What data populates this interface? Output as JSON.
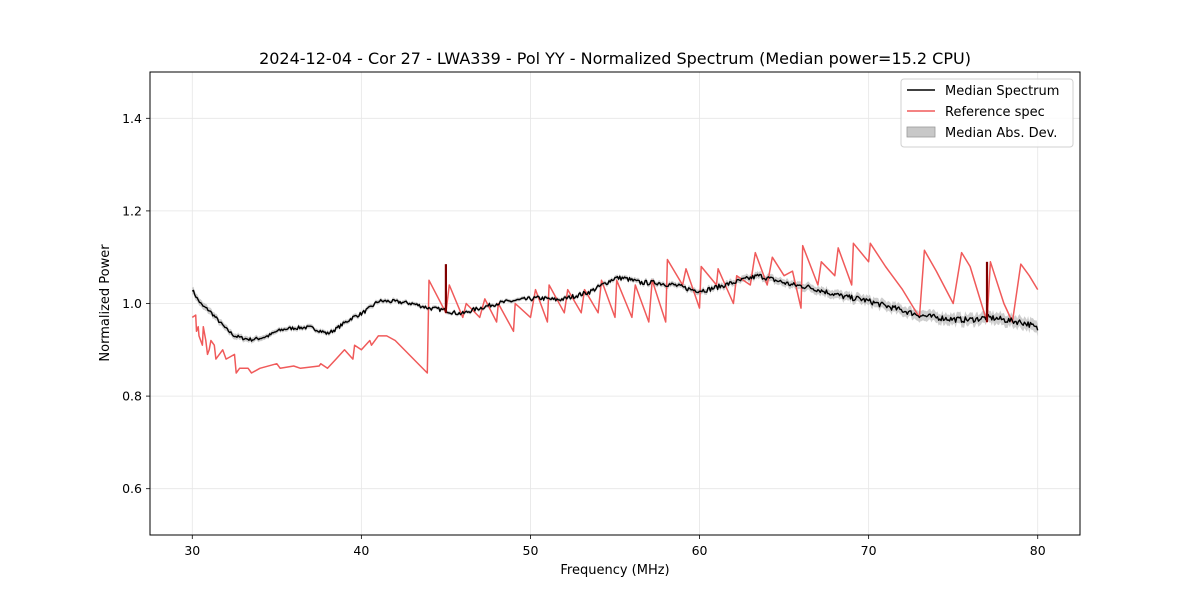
{
  "chart_data": {
    "type": "line",
    "title": "2024-12-04 - Cor 27 - LWA339 - Pol YY - Normalized Spectrum (Median power=15.2 CPU)",
    "xlabel": "Frequency (MHz)",
    "ylabel": "Normalized Power",
    "xlim": [
      27.5,
      82.5
    ],
    "ylim": [
      0.5,
      1.5
    ],
    "xticks": [
      30,
      40,
      50,
      60,
      70,
      80
    ],
    "yticks": [
      0.6,
      0.8,
      1.0,
      1.2,
      1.4
    ],
    "xtick_labels": [
      "30",
      "40",
      "50",
      "60",
      "70",
      "80"
    ],
    "ytick_labels": [
      "0.6",
      "0.8",
      "1.0",
      "1.2",
      "1.4"
    ],
    "grid": true,
    "legend": {
      "position": "top-right",
      "entries": [
        {
          "label": "Median Spectrum",
          "color": "#000000",
          "kind": "line"
        },
        {
          "label": "Reference spec",
          "color": "#f05a5a",
          "kind": "line"
        },
        {
          "label": "Median Abs. Dev.",
          "color": "#bdbdbd",
          "kind": "patch"
        }
      ]
    },
    "series": [
      {
        "name": "Median Spectrum",
        "color": "#000000",
        "x": [
          30.0,
          30.3,
          30.6,
          31.0,
          31.5,
          32.0,
          32.5,
          33.0,
          33.5,
          34.0,
          34.5,
          35.0,
          35.5,
          36.0,
          36.5,
          37.0,
          37.5,
          38.0,
          38.5,
          39.0,
          39.5,
          40.0,
          40.5,
          41.0,
          41.5,
          42.0,
          42.5,
          43.0,
          43.5,
          44.0,
          44.5,
          45.0,
          45.5,
          46.0,
          46.5,
          47.0,
          47.5,
          48.0,
          48.5,
          49.0,
          49.5,
          50.0,
          50.5,
          51.0,
          51.5,
          52.0,
          52.5,
          53.0,
          53.5,
          54.0,
          54.5,
          55.0,
          55.5,
          56.0,
          56.5,
          57.0,
          57.5,
          58.0,
          58.5,
          59.0,
          59.5,
          60.0,
          60.5,
          61.0,
          61.5,
          62.0,
          62.5,
          63.0,
          63.5,
          64.0,
          64.5,
          65.0,
          65.5,
          66.0,
          66.5,
          67.0,
          67.5,
          68.0,
          68.5,
          69.0,
          69.5,
          70.0,
          70.5,
          71.0,
          71.5,
          72.0,
          72.5,
          73.0,
          73.5,
          74.0,
          74.5,
          75.0,
          75.5,
          76.0,
          76.5,
          77.0,
          77.5,
          78.0,
          78.5,
          79.0,
          79.5,
          80.0
        ],
        "values": [
          1.03,
          1.01,
          0.995,
          0.985,
          0.965,
          0.945,
          0.93,
          0.925,
          0.922,
          0.925,
          0.93,
          0.94,
          0.945,
          0.947,
          0.948,
          0.948,
          0.942,
          0.935,
          0.945,
          0.958,
          0.97,
          0.978,
          0.99,
          1.005,
          1.005,
          1.004,
          1.002,
          1.0,
          0.995,
          0.99,
          0.988,
          0.985,
          0.98,
          0.978,
          0.985,
          0.99,
          0.995,
          1.0,
          1.003,
          1.006,
          1.008,
          1.01,
          1.012,
          1.01,
          1.008,
          1.01,
          1.015,
          1.02,
          1.025,
          1.035,
          1.045,
          1.055,
          1.055,
          1.05,
          1.045,
          1.045,
          1.045,
          1.042,
          1.04,
          1.035,
          1.03,
          1.028,
          1.03,
          1.035,
          1.04,
          1.045,
          1.05,
          1.055,
          1.06,
          1.055,
          1.05,
          1.045,
          1.04,
          1.038,
          1.035,
          1.03,
          1.025,
          1.02,
          1.015,
          1.012,
          1.01,
          1.005,
          1.0,
          0.995,
          0.99,
          0.985,
          0.98,
          0.975,
          0.972,
          0.97,
          0.968,
          0.966,
          0.965,
          0.965,
          0.967,
          0.97,
          0.968,
          0.965,
          0.962,
          0.96,
          0.955,
          0.945
        ]
      },
      {
        "name": "Reference spec",
        "color": "#f05a5a",
        "x": [
          30.0,
          30.2,
          30.25,
          30.35,
          30.4,
          30.6,
          30.65,
          30.8,
          30.9,
          31.0,
          31.1,
          31.3,
          31.4,
          31.8,
          32.0,
          32.5,
          32.6,
          32.8,
          33.3,
          33.5,
          34.0,
          35.0,
          35.2,
          36.0,
          36.4,
          37.5,
          37.6,
          38.0,
          38.5,
          39.0,
          39.5,
          39.6,
          40.0,
          40.5,
          40.6,
          41.0,
          41.5,
          42.0,
          43.9,
          44.0,
          45.0,
          45.2,
          46.0,
          46.2,
          47.0,
          47.3,
          48.0,
          48.1,
          49.0,
          49.1,
          50.0,
          50.3,
          51.0,
          51.1,
          52.0,
          52.2,
          53.0,
          53.2,
          54.0,
          54.2,
          55.0,
          55.1,
          56.0,
          56.2,
          57.0,
          57.2,
          58.0,
          58.1,
          59.0,
          59.2,
          60.0,
          60.1,
          61.0,
          61.1,
          62.0,
          62.2,
          63.0,
          63.3,
          64.0,
          64.3,
          65.0,
          65.5,
          66.0,
          66.1,
          67.0,
          67.2,
          68.0,
          68.2,
          69.0,
          69.1,
          70.0,
          70.1,
          71.0,
          72.0,
          73.0,
          73.3,
          74.0,
          75.0,
          75.5,
          76.0,
          77.0,
          77.2,
          78.0,
          78.5,
          79.0,
          79.5,
          80.0
        ],
        "values": [
          0.97,
          0.975,
          0.94,
          0.95,
          0.93,
          0.91,
          0.95,
          0.92,
          0.89,
          0.9,
          0.92,
          0.91,
          0.88,
          0.9,
          0.88,
          0.89,
          0.85,
          0.86,
          0.86,
          0.85,
          0.86,
          0.87,
          0.86,
          0.865,
          0.86,
          0.865,
          0.87,
          0.86,
          0.88,
          0.9,
          0.88,
          0.91,
          0.9,
          0.92,
          0.91,
          0.93,
          0.93,
          0.92,
          0.85,
          1.05,
          0.98,
          1.04,
          0.97,
          1.0,
          0.97,
          1.01,
          0.96,
          1.0,
          0.94,
          1.0,
          0.97,
          1.03,
          0.96,
          1.04,
          0.98,
          1.03,
          0.98,
          1.03,
          0.98,
          1.05,
          0.97,
          1.05,
          0.97,
          1.04,
          0.96,
          1.05,
          0.96,
          1.095,
          1.04,
          1.075,
          0.99,
          1.08,
          1.04,
          1.075,
          1.0,
          1.06,
          1.04,
          1.11,
          1.04,
          1.1,
          1.06,
          1.07,
          0.99,
          1.125,
          1.04,
          1.09,
          1.06,
          1.12,
          1.04,
          1.13,
          1.09,
          1.13,
          1.08,
          1.03,
          0.97,
          1.115,
          1.07,
          1.0,
          1.11,
          1.08,
          0.96,
          1.09,
          1.0,
          0.96,
          1.085,
          1.06,
          1.03
        ]
      }
    ],
    "mad_band": {
      "name": "Median Abs. Dev.",
      "color": "#bdbdbd",
      "x": [
        30.0,
        35.0,
        40.0,
        45.0,
        50.0,
        55.0,
        60.0,
        65.0,
        70.0,
        75.0,
        80.0
      ],
      "halfwidth": [
        0.008,
        0.005,
        0.005,
        0.004,
        0.004,
        0.005,
        0.006,
        0.008,
        0.01,
        0.012,
        0.013
      ]
    },
    "spikes": [
      {
        "x": 45.0,
        "y_low": 0.98,
        "y_high": 1.085,
        "color": "#800000"
      },
      {
        "x": 77.0,
        "y_low": 0.96,
        "y_high": 1.09,
        "color": "#800000"
      }
    ]
  }
}
